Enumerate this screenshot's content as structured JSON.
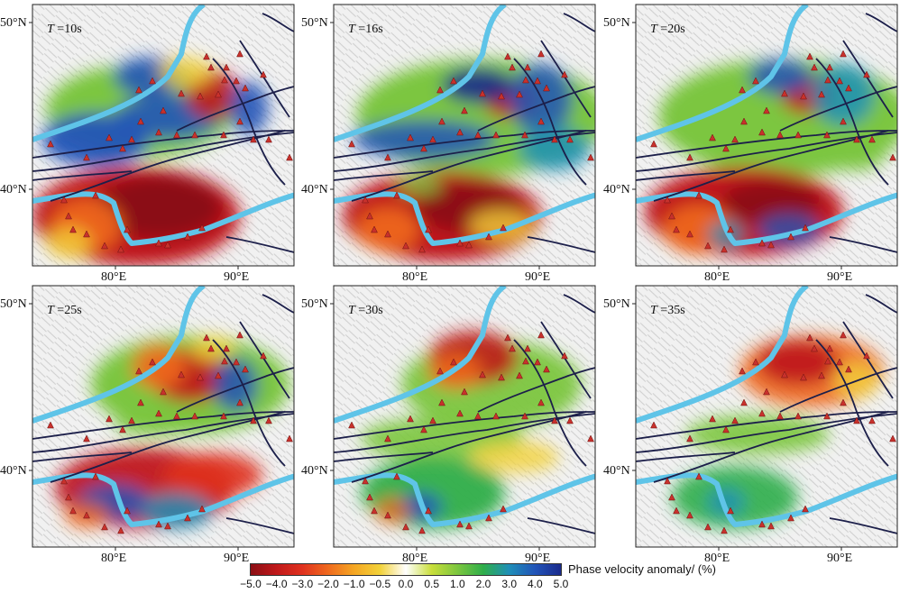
{
  "figure": {
    "panels": [
      {
        "id": "p1",
        "period_label": "T",
        "period_value": "=10s",
        "regime": 0
      },
      {
        "id": "p2",
        "period_label": "T",
        "period_value": "=16s",
        "regime": 1
      },
      {
        "id": "p3",
        "period_label": "T",
        "period_value": "=20s",
        "regime": 2
      },
      {
        "id": "p4",
        "period_label": "T",
        "period_value": "=25s",
        "regime": 3
      },
      {
        "id": "p5",
        "period_label": "T",
        "period_value": "=30s",
        "regime": 4
      },
      {
        "id": "p6",
        "period_label": "T",
        "period_value": "=35s",
        "regime": 5
      }
    ],
    "lat_labels": {
      "north": "50°N",
      "south": "40°N"
    },
    "lon_labels": {
      "west": "80°E",
      "east": "90°E"
    },
    "colorbar": {
      "label": "Phase velocity anomaly/ (%)",
      "ticks": [
        "−5.0",
        "−4.0",
        "−3.0",
        "−2.0",
        "−1.0",
        "−0.5",
        "0.0",
        "0.5",
        "1.0",
        "2.0",
        "3.0",
        "4.0",
        "5.0"
      ],
      "colors": [
        "#8b0f14",
        "#c0191b",
        "#e0321f",
        "#ef6a1e",
        "#f5a623",
        "#f2d23a",
        "#ffffff",
        "#c9de3b",
        "#7cc63f",
        "#2fae4a",
        "#1f8fb8",
        "#2254b8",
        "#1a2a8c"
      ]
    },
    "colors": {
      "boundary": "#5fc4e8",
      "fault": "#1c1f4a",
      "station": "#c8312c",
      "relief": "#bdbdbd"
    }
  }
}
